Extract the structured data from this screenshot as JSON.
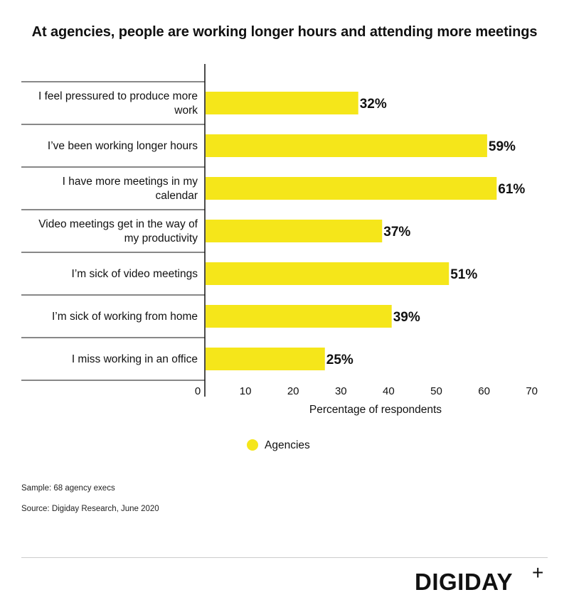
{
  "chart_data": {
    "type": "bar",
    "orientation": "horizontal",
    "title": "At agencies, people are working longer hours and attending more meetings",
    "categories": [
      [
        "I feel pressured to produce more",
        "work"
      ],
      [
        "I’ve been working longer hours"
      ],
      [
        "I have more meetings in my",
        "calendar"
      ],
      [
        "Video meetings get in the way of",
        "my productivity"
      ],
      [
        "I’m sick of video meetings"
      ],
      [
        "I’m sick of working from home"
      ],
      [
        "I miss working in an office"
      ]
    ],
    "series": [
      {
        "name": "Agencies",
        "values": [
          32,
          59,
          61,
          37,
          51,
          39,
          25
        ],
        "labels": [
          "32%",
          "59%",
          "61%",
          "37%",
          "51%",
          "39%",
          "25%"
        ],
        "color": "#f5e61a"
      }
    ],
    "xticks": [
      "0",
      "10",
      "20",
      "30",
      "40",
      "50",
      "60",
      "70"
    ],
    "xlim": [
      0,
      70
    ],
    "xlabel": "Percentage of respondents",
    "legend_position": "bottom-center"
  },
  "notes": {
    "sample": "Sample: 68 agency execs",
    "source": "Source: Digiday Research, June 2020"
  },
  "brand": {
    "logo_text": "DIGIDAY",
    "logo_mark": "+"
  }
}
